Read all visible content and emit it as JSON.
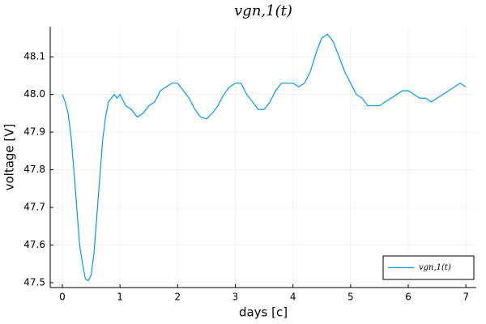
{
  "chart_data": {
    "type": "line",
    "title": "vgn,1(t)",
    "x_label": "days [c]",
    "y_label": "voltage [V]",
    "x": [
      0,
      0.05,
      0.1,
      0.15,
      0.2,
      0.25,
      0.3,
      0.35,
      0.4,
      0.45,
      0.5,
      0.55,
      0.6,
      0.65,
      0.7,
      0.75,
      0.8,
      0.85,
      0.9,
      0.95,
      1.0,
      1.1,
      1.2,
      1.3,
      1.4,
      1.5,
      1.6,
      1.7,
      1.8,
      1.9,
      2.0,
      2.1,
      2.2,
      2.3,
      2.4,
      2.5,
      2.6,
      2.7,
      2.8,
      2.9,
      3.0,
      3.1,
      3.2,
      3.3,
      3.4,
      3.5,
      3.6,
      3.7,
      3.8,
      3.9,
      4.0,
      4.1,
      4.2,
      4.3,
      4.4,
      4.5,
      4.6,
      4.7,
      4.8,
      4.9,
      5.0,
      5.1,
      5.2,
      5.3,
      5.4,
      5.5,
      5.6,
      5.7,
      5.8,
      5.9,
      6.0,
      6.1,
      6.2,
      6.3,
      6.4,
      6.5,
      6.6,
      6.7,
      6.8,
      6.9,
      7.0
    ],
    "series": [
      {
        "name": "vgn,1(t)",
        "color": "#009af9",
        "values": [
          48.0,
          47.98,
          47.95,
          47.89,
          47.8,
          47.7,
          47.6,
          47.55,
          47.51,
          47.505,
          47.52,
          47.58,
          47.68,
          47.78,
          47.88,
          47.94,
          47.98,
          47.99,
          48.0,
          47.99,
          48.0,
          47.97,
          47.96,
          47.94,
          47.95,
          47.97,
          47.98,
          48.01,
          48.02,
          48.03,
          48.03,
          48.01,
          47.99,
          47.96,
          47.94,
          47.935,
          47.95,
          47.97,
          48.0,
          48.02,
          48.03,
          48.03,
          48.0,
          47.98,
          47.96,
          47.96,
          47.98,
          48.01,
          48.03,
          48.03,
          48.03,
          48.02,
          48.03,
          48.06,
          48.11,
          48.15,
          48.16,
          48.14,
          48.1,
          48.06,
          48.03,
          48.0,
          47.99,
          47.97,
          47.97,
          47.97,
          47.98,
          47.99,
          48.0,
          48.01,
          48.01,
          48.0,
          47.99,
          47.99,
          47.98,
          47.99,
          48.0,
          48.01,
          48.02,
          48.03,
          48.02
        ]
      }
    ],
    "xlim": [
      -0.21,
      7.18
    ],
    "ylim": [
      47.487,
      48.18
    ],
    "xticks": [
      0,
      1,
      2,
      3,
      4,
      5,
      6,
      7
    ],
    "yticks": [
      47.5,
      47.6,
      47.7,
      47.8,
      47.9,
      {
        "value": 48,
        "label": "48.0"
      },
      48.1
    ],
    "grid": true,
    "legend": "bottom-right"
  }
}
